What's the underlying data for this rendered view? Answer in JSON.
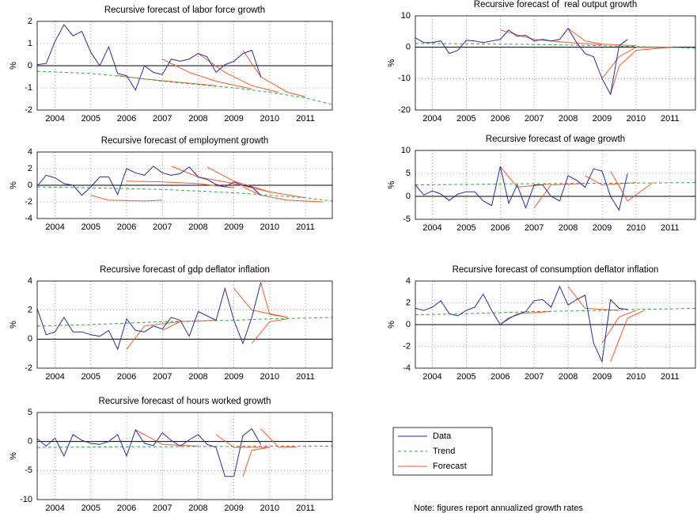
{
  "chart_data": [
    {
      "type": "line",
      "title": "Recursive forecast of labor force growth",
      "y_label": "%",
      "xlim": [
        2003.5,
        2011.75
      ],
      "xticks": [
        2004,
        2005,
        2006,
        2007,
        2008,
        2009,
        2010,
        2011
      ],
      "ylim": [
        -2,
        2
      ],
      "yticks": [
        -2,
        -1,
        0,
        1,
        2
      ],
      "grid": true,
      "data": {
        "x": [
          2003.5,
          2003.75,
          2004,
          2004.25,
          2004.5,
          2004.75,
          2005,
          2005.25,
          2005.5,
          2005.75,
          2006,
          2006.25,
          2006.5,
          2006.75,
          2007,
          2007.25,
          2007.5,
          2007.75,
          2008,
          2008.25,
          2008.5,
          2008.75,
          2009,
          2009.25,
          2009.5,
          2009.75
        ],
        "values": [
          0.05,
          0.1,
          1.1,
          1.85,
          1.35,
          1.55,
          0.6,
          0.0,
          0.85,
          -0.35,
          -0.45,
          -1.1,
          0.0,
          -0.3,
          -0.4,
          0.3,
          0.2,
          0.3,
          0.55,
          0.4,
          -0.3,
          0.05,
          0.2,
          0.55,
          0.7,
          -0.5
        ]
      },
      "trend": {
        "x": [
          2003.5,
          2005,
          2006,
          2007,
          2008,
          2009,
          2010,
          2011,
          2011.75
        ],
        "values": [
          -0.25,
          -0.35,
          -0.5,
          -0.7,
          -0.85,
          -1.0,
          -1.2,
          -1.45,
          -1.75
        ]
      },
      "forecasts": [
        {
          "x": [
            2005.75,
            2006.5,
            2007.5,
            2008.5
          ],
          "values": [
            -0.45,
            -0.6,
            -0.75,
            -0.9
          ]
        },
        {
          "x": [
            2007,
            2007.75,
            2008.5,
            2009.5
          ],
          "values": [
            0.3,
            -0.3,
            -0.7,
            -1.05
          ]
        },
        {
          "x": [
            2008,
            2008.75,
            2009.5,
            2010.25
          ],
          "values": [
            0.55,
            -0.3,
            -0.9,
            -1.2
          ]
        },
        {
          "x": [
            2009.25,
            2009.75,
            2010.5,
            2011
          ],
          "values": [
            0.7,
            -0.5,
            -1.2,
            -1.4
          ]
        }
      ]
    },
    {
      "type": "line",
      "title": "Recursive forecast of  real output growth",
      "y_label": "%",
      "xlim": [
        2003.5,
        2011.75
      ],
      "xticks": [
        2004,
        2005,
        2006,
        2007,
        2008,
        2009,
        2010,
        2011
      ],
      "ylim": [
        -20,
        10
      ],
      "yticks": [
        -20,
        -10,
        0,
        10
      ],
      "grid": true,
      "data": {
        "x": [
          2003.5,
          2003.75,
          2004,
          2004.25,
          2004.5,
          2004.75,
          2005,
          2005.25,
          2005.5,
          2005.75,
          2006,
          2006.25,
          2006.5,
          2006.75,
          2007,
          2007.25,
          2007.5,
          2007.75,
          2008,
          2008.25,
          2008.5,
          2008.75,
          2009,
          2009.25,
          2009.5,
          2009.75
        ],
        "values": [
          3,
          1.5,
          1.5,
          2,
          -2,
          -1,
          2.2,
          2,
          1.5,
          2,
          2.5,
          5.5,
          3.5,
          3.8,
          2,
          2.5,
          2,
          2.5,
          6,
          1.5,
          -2,
          -3,
          -10,
          -15,
          0.5,
          2.5
        ]
      },
      "trend": {
        "x": [
          2003.5,
          2005,
          2006,
          2007,
          2008,
          2009,
          2010,
          2011,
          2011.75
        ],
        "values": [
          1.2,
          1.1,
          1.0,
          0.9,
          0.7,
          0.5,
          0.2,
          0,
          -0.3
        ]
      },
      "forecasts": [
        {
          "x": [
            2006,
            2007,
            2008,
            2009
          ],
          "values": [
            5.5,
            2.5,
            1.5,
            0.8
          ]
        },
        {
          "x": [
            2008,
            2008.5,
            2009,
            2010
          ],
          "values": [
            6,
            2,
            1,
            0.5
          ]
        },
        {
          "x": [
            2009,
            2009.5,
            2010,
            2011
          ],
          "values": [
            -10,
            -3,
            0,
            0
          ]
        },
        {
          "x": [
            2009.25,
            2009.5,
            2010,
            2011
          ],
          "values": [
            -15,
            -6,
            -1,
            0
          ]
        }
      ]
    },
    {
      "type": "line",
      "title": "Recursive forecast of employment growth",
      "y_label": "%",
      "xlim": [
        2003.5,
        2011.75
      ],
      "xticks": [
        2004,
        2005,
        2006,
        2007,
        2008,
        2009,
        2010,
        2011
      ],
      "ylim": [
        -4,
        4
      ],
      "yticks": [
        -4,
        -2,
        0,
        2,
        4
      ],
      "grid": true,
      "data": {
        "x": [
          2003.5,
          2003.75,
          2004,
          2004.25,
          2004.5,
          2004.75,
          2005,
          2005.25,
          2005.5,
          2005.75,
          2006,
          2006.25,
          2006.5,
          2006.75,
          2007,
          2007.25,
          2007.5,
          2007.75,
          2008,
          2008.25,
          2008.5,
          2008.75,
          2009,
          2009.25,
          2009.5,
          2009.75
        ],
        "values": [
          -0.1,
          1.2,
          0.9,
          0.2,
          0.0,
          -1.2,
          -0.2,
          1.0,
          1.0,
          -1.1,
          2.0,
          1.5,
          1.2,
          2.3,
          1.5,
          1.2,
          1.4,
          2.2,
          1.0,
          0.7,
          0.1,
          -0.2,
          0.4,
          0.0,
          -0.2,
          -1.2
        ]
      },
      "trend": {
        "x": [
          2003.5,
          2005,
          2006,
          2007,
          2008,
          2009,
          2010,
          2011,
          2011.75
        ],
        "values": [
          -0.2,
          -0.3,
          -0.4,
          -0.5,
          -0.7,
          -0.9,
          -1.2,
          -1.5,
          -1.9
        ]
      },
      "forecasts": [
        {
          "x": [
            2005,
            2005.5,
            2006.5,
            2007
          ],
          "values": [
            -1.2,
            -1.8,
            -1.9,
            -1.8
          ]
        },
        {
          "x": [
            2006,
            2007,
            2008,
            2009
          ],
          "values": [
            0.5,
            0.4,
            0.2,
            -0.3
          ]
        },
        {
          "x": [
            2007.25,
            2008,
            2009,
            2010
          ],
          "values": [
            2.3,
            1.0,
            0.2,
            -0.8
          ]
        },
        {
          "x": [
            2008.25,
            2009,
            2010,
            2011
          ],
          "values": [
            2.2,
            0.5,
            -0.8,
            -1.5
          ]
        },
        {
          "x": [
            2009.25,
            2009.75,
            2010.5,
            2011.5
          ],
          "values": [
            -0.2,
            -1.2,
            -1.8,
            -2.0
          ]
        }
      ]
    },
    {
      "type": "line",
      "title": "Recursive forecast of wage growth",
      "y_label": "%",
      "xlim": [
        2003.5,
        2011.75
      ],
      "xticks": [
        2004,
        2005,
        2006,
        2007,
        2008,
        2009,
        2010,
        2011
      ],
      "ylim": [
        -5,
        10
      ],
      "yticks": [
        -5,
        0,
        5,
        10
      ],
      "grid": true,
      "data": {
        "x": [
          2003.5,
          2003.75,
          2004,
          2004.25,
          2004.5,
          2004.75,
          2005,
          2005.25,
          2005.5,
          2005.75,
          2006,
          2006.25,
          2006.5,
          2006.75,
          2007,
          2007.25,
          2007.5,
          2007.75,
          2008,
          2008.25,
          2008.5,
          2008.75,
          2009,
          2009.25,
          2009.5,
          2009.75
        ],
        "values": [
          2.5,
          0.3,
          1.2,
          0.5,
          -0.9,
          0.5,
          1.0,
          1.0,
          -1.0,
          -2.0,
          6.5,
          -1.5,
          2.5,
          -2.5,
          2.5,
          2.5,
          0.0,
          -1.0,
          4.5,
          3.5,
          2.0,
          6.0,
          5.5,
          0.0,
          -3.0,
          5.0
        ]
      },
      "trend": {
        "x": [
          2003.5,
          2005,
          2006,
          2007,
          2008,
          2009,
          2010,
          2011,
          2011.75
        ],
        "values": [
          2.5,
          2.6,
          2.7,
          2.75,
          2.8,
          2.85,
          2.9,
          2.95,
          3.0
        ]
      },
      "forecasts": [
        {
          "x": [
            2006,
            2006.5,
            2007.5
          ],
          "values": [
            6.5,
            2.0,
            2.7
          ]
        },
        {
          "x": [
            2007,
            2007.5,
            2008.5
          ],
          "values": [
            -2.5,
            2.5,
            2.8
          ]
        },
        {
          "x": [
            2008.5,
            2009,
            2010
          ],
          "values": [
            4.5,
            2.5,
            3
          ]
        },
        {
          "x": [
            2009.25,
            2009.75,
            2010.5
          ],
          "values": [
            5.5,
            -1.0,
            3
          ]
        }
      ]
    },
    {
      "type": "line",
      "title": "Recursive forecast of gdp deflator inflation",
      "y_label": "%",
      "xlim": [
        2003.5,
        2011.75
      ],
      "xticks": [
        2004,
        2005,
        2006,
        2007,
        2008,
        2009,
        2010,
        2011
      ],
      "ylim": [
        -2,
        4
      ],
      "yticks": [
        -2,
        0,
        2,
        4
      ],
      "grid": true,
      "data": {
        "x": [
          2003.5,
          2003.75,
          2004,
          2004.25,
          2004.5,
          2004.75,
          2005,
          2005.25,
          2005.5,
          2005.75,
          2006,
          2006.25,
          2006.5,
          2006.75,
          2007,
          2007.25,
          2007.5,
          2007.75,
          2008,
          2008.25,
          2008.5,
          2008.75,
          2009,
          2009.25,
          2009.5,
          2009.75
        ],
        "values": [
          2.1,
          0.3,
          0.5,
          1.5,
          0.5,
          0.5,
          0.3,
          0.2,
          0.6,
          -0.7,
          1.4,
          0.6,
          0.5,
          0.9,
          0.7,
          1.5,
          1.3,
          0.2,
          1.9,
          1.6,
          1.3,
          3.5,
          1.3,
          -0.3,
          1.5,
          3.9
        ]
      },
      "trend": {
        "x": [
          2003.5,
          2005,
          2006,
          2007,
          2008,
          2009,
          2010,
          2011,
          2011.75
        ],
        "values": [
          0.9,
          1.0,
          1.1,
          1.2,
          1.25,
          1.3,
          1.4,
          1.45,
          1.5
        ]
      },
      "forecasts": [
        {
          "x": [
            2006,
            2006.5,
            2007.5
          ],
          "values": [
            -0.7,
            0.9,
            1.2
          ]
        },
        {
          "x": [
            2007,
            2007.5,
            2008.5
          ],
          "values": [
            0.6,
            1.2,
            1.3
          ]
        },
        {
          "x": [
            2009,
            2009.5,
            2010.5
          ],
          "values": [
            3.5,
            2.0,
            1.5
          ]
        },
        {
          "x": [
            2009.5,
            2010,
            2010.5
          ],
          "values": [
            -0.3,
            1.2,
            1.4
          ]
        },
        {
          "x": [
            2009.75,
            2010,
            2010.5
          ],
          "values": [
            3.9,
            1.7,
            1.5
          ]
        }
      ]
    },
    {
      "type": "line",
      "title": "Recursive forecast of consumption deflator inflation",
      "y_label": "%",
      "xlim": [
        2003.5,
        2011.75
      ],
      "xticks": [
        2004,
        2005,
        2006,
        2007,
        2008,
        2009,
        2010,
        2011
      ],
      "ylim": [
        -4,
        4
      ],
      "yticks": [
        -4,
        -2,
        0,
        2,
        4
      ],
      "grid": true,
      "data": {
        "x": [
          2003.5,
          2003.75,
          2004,
          2004.25,
          2004.5,
          2004.75,
          2005,
          2005.25,
          2005.5,
          2005.75,
          2006,
          2006.25,
          2006.5,
          2006.75,
          2007,
          2007.25,
          2007.5,
          2007.75,
          2008,
          2008.25,
          2008.5,
          2008.75,
          2009,
          2009.25,
          2009.5,
          2009.75
        ],
        "values": [
          1.5,
          1.3,
          1.6,
          2.2,
          1.0,
          0.8,
          1.3,
          1.6,
          2.8,
          1.3,
          0.0,
          0.6,
          0.9,
          1.2,
          2.2,
          2.3,
          1.6,
          3.5,
          1.8,
          2.3,
          2.7,
          -1.7,
          -3.4,
          2.3,
          1.5,
          1.4
        ]
      },
      "trend": {
        "x": [
          2003.5,
          2005,
          2006,
          2007,
          2008,
          2009,
          2010,
          2011,
          2011.75
        ],
        "values": [
          0.9,
          1.0,
          1.1,
          1.2,
          1.25,
          1.3,
          1.4,
          1.45,
          1.5
        ]
      },
      "forecasts": [
        {
          "x": [
            2006,
            2006.5,
            2007.5
          ],
          "values": [
            0.0,
            1.0,
            1.2
          ]
        },
        {
          "x": [
            2008,
            2008.5,
            2009.5
          ],
          "values": [
            3.5,
            1.5,
            1.3
          ]
        },
        {
          "x": [
            2009,
            2009.5,
            2010
          ],
          "values": [
            -1.7,
            0.7,
            1.3
          ]
        },
        {
          "x": [
            2009.25,
            2009.75,
            2010.25
          ],
          "values": [
            -3.4,
            0.6,
            1.3
          ]
        }
      ]
    },
    {
      "type": "line",
      "title": "Recursive forecast of hours worked growth",
      "y_label": "%",
      "xlim": [
        2003.5,
        2011.75
      ],
      "xticks": [
        2004,
        2005,
        2006,
        2007,
        2008,
        2009,
        2010,
        2011
      ],
      "ylim": [
        -10,
        5
      ],
      "yticks": [
        -10,
        -5,
        0,
        5
      ],
      "grid": true,
      "data": {
        "x": [
          2003.5,
          2003.75,
          2004,
          2004.25,
          2004.5,
          2004.75,
          2005,
          2005.25,
          2005.5,
          2005.75,
          2006,
          2006.25,
          2006.5,
          2006.75,
          2007,
          2007.25,
          2007.5,
          2007.75,
          2008,
          2008.25,
          2008.5,
          2008.75,
          2009,
          2009.25,
          2009.5,
          2009.75
        ],
        "values": [
          0.5,
          -0.8,
          0.6,
          -2.5,
          1.2,
          0.2,
          -0.3,
          -0.5,
          0.0,
          1.2,
          -2.5,
          2.0,
          -0.3,
          -0.7,
          1.5,
          0.2,
          -0.8,
          0.3,
          1.2,
          -0.5,
          -1.0,
          -6.0,
          -6.0,
          1.0,
          2.2,
          -0.5
        ]
      },
      "trend": {
        "x": [
          2003.5,
          2005,
          2006,
          2007,
          2008,
          2009,
          2010,
          2011,
          2011.75
        ],
        "values": [
          -1.0,
          -0.95,
          -0.9,
          -0.9,
          -0.85,
          -0.85,
          -0.8,
          -0.8,
          -0.8
        ]
      },
      "forecasts": [
        {
          "x": [
            2006.25,
            2007,
            2008
          ],
          "values": [
            2.0,
            -0.5,
            -0.8
          ]
        },
        {
          "x": [
            2008.5,
            2009,
            2010
          ],
          "values": [
            1.2,
            -1.0,
            -1.0
          ]
        },
        {
          "x": [
            2009.25,
            2009.5,
            2010
          ],
          "values": [
            -6.0,
            -1.5,
            -1.0
          ]
        },
        {
          "x": [
            2009.75,
            2010.25,
            2010.75
          ],
          "values": [
            2.2,
            -1.0,
            -0.9
          ]
        }
      ]
    }
  ],
  "legend": {
    "entries": [
      {
        "name": "Data",
        "color": "#2b2b9c",
        "dash": false
      },
      {
        "name": "Trend",
        "color": "#2ea84a",
        "dash": true
      },
      {
        "name": "Forecast",
        "color": "#f25a2c",
        "dash": false
      }
    ]
  },
  "note": "Note: figures report annualized growth rates"
}
